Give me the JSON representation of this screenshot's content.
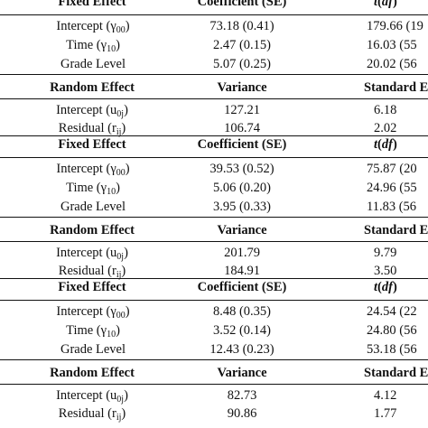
{
  "sections": [
    {
      "fixed": {
        "headers": {
          "effect": "Fixed Effect",
          "coef": "Coefficient (SE)",
          "t_pre": "t",
          "t_mid": "(",
          "t_df": "df",
          "t_post": ")"
        },
        "rows": [
          {
            "label": "Intercept (",
            "sym": "γ",
            "sub": "00",
            "close": ")",
            "coef": "73.18 (0.41)",
            "t": "179.66 (19"
          },
          {
            "label": "Time (",
            "sym": "γ",
            "sub": "10",
            "close": ")",
            "coef": "2.47 (0.15)",
            "t": "16.03 (55"
          },
          {
            "label": "Grade Level",
            "sym": "",
            "sub": "",
            "close": "",
            "coef": "5.07 (0.25)",
            "t": "20.02 (56"
          }
        ]
      },
      "random": {
        "headers": {
          "effect": "Random Effect",
          "variance": "Variance",
          "sd": "Standard E"
        },
        "rows": [
          {
            "label": "Intercept (u",
            "sub": "0j",
            "close": ")",
            "variance": "127.21",
            "sd": "6.18"
          },
          {
            "label": "Residual (r",
            "sub": "ij",
            "close": ")",
            "variance": "106.74",
            "sd": "2.02"
          }
        ]
      }
    },
    {
      "fixed": {
        "headers": {
          "effect": "Fixed Effect",
          "coef": "Coefficient (SE)",
          "t_pre": "t",
          "t_mid": "(",
          "t_df": "df",
          "t_post": ")"
        },
        "rows": [
          {
            "label": "Intercept (",
            "sym": "γ",
            "sub": "00",
            "close": ")",
            "coef": "39.53 (0.52)",
            "t": "75.87 (20"
          },
          {
            "label": "Time (",
            "sym": "γ",
            "sub": "10",
            "close": ")",
            "coef": "5.06 (0.20)",
            "t": "24.96 (55"
          },
          {
            "label": "Grade Level",
            "sym": "",
            "sub": "",
            "close": "",
            "coef": "3.95 (0.33)",
            "t": "11.83 (56"
          }
        ]
      },
      "random": {
        "headers": {
          "effect": "Random Effect",
          "variance": "Variance",
          "sd": "Standard E"
        },
        "rows": [
          {
            "label": "Intercept (u",
            "sub": "0j",
            "close": ")",
            "variance": "201.79",
            "sd": "9.79"
          },
          {
            "label": "Residual (r",
            "sub": "ij",
            "close": ")",
            "variance": "184.91",
            "sd": "3.50"
          }
        ]
      }
    },
    {
      "fixed": {
        "headers": {
          "effect": "Fixed Effect",
          "coef": "Coefficient (SE)",
          "t_pre": "t",
          "t_mid": "(",
          "t_df": "df",
          "t_post": ")"
        },
        "rows": [
          {
            "label": "Intercept (",
            "sym": "γ",
            "sub": "00",
            "close": ")",
            "coef": "8.48 (0.35)",
            "t": "24.54 (22"
          },
          {
            "label": "Time (",
            "sym": "γ",
            "sub": "10",
            "close": ")",
            "coef": "3.52 (0.14)",
            "t": "24.80 (56"
          },
          {
            "label": "Grade Level",
            "sym": "",
            "sub": "",
            "close": "",
            "coef": "12.43 (0.23)",
            "t": "53.18 (56"
          }
        ]
      },
      "random": {
        "headers": {
          "effect": "Random Effect",
          "variance": "Variance",
          "sd": "Standard E"
        },
        "rows": [
          {
            "label": "Intercept (u",
            "sub": "0j",
            "close": ")",
            "variance": "82.73",
            "sd": "4.12"
          },
          {
            "label": "Residual (r",
            "sub": "ij",
            "close": ")",
            "variance": "90.86",
            "sd": "1.77"
          }
        ]
      }
    }
  ]
}
